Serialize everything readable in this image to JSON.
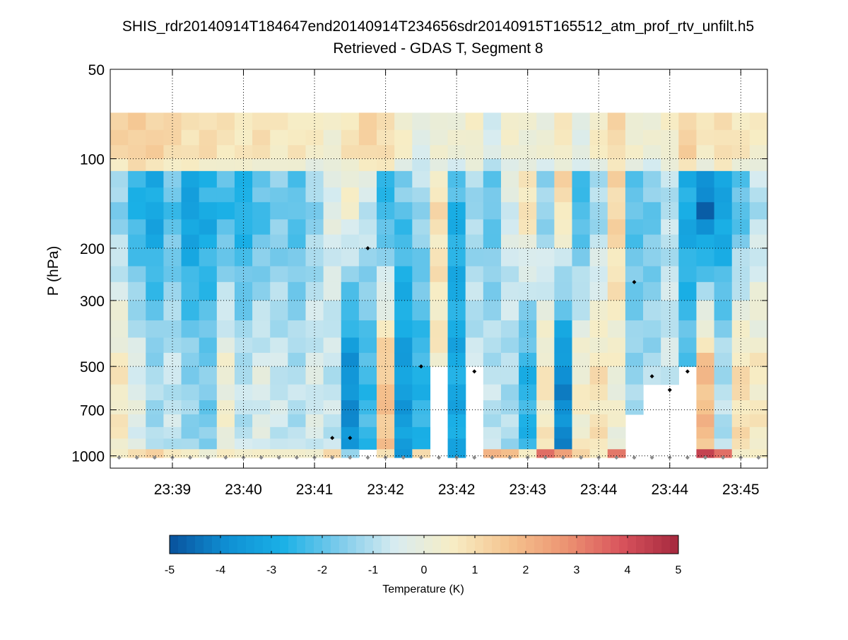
{
  "chart_data": {
    "type": "heatmap",
    "title": "SHIS_rdr20140914T184647end20140914T234656sdr20140915T165512_atm_prof_rtv_unfilt.h5",
    "subtitle": "Retrieved - GDAS T, Segment 8",
    "ylabel": "P (hPa)",
    "xlabel": "",
    "y_scale": "log",
    "ylim": [
      50,
      1100
    ],
    "y_ticks": [
      50,
      100,
      200,
      300,
      500,
      700,
      1000
    ],
    "x_tick_labels": [
      "23:39",
      "23:40",
      "23:41",
      "23:42",
      "23:42",
      "23:43",
      "23:44",
      "23:44",
      "23:45"
    ],
    "x_tick_columns": [
      3,
      7,
      11,
      15,
      19,
      23,
      27,
      31,
      35
    ],
    "n_columns": 37,
    "colorbar": {
      "label": "Temperature (K)",
      "range": [
        -5,
        5
      ],
      "ticks": [
        -5,
        -4,
        -3,
        -2,
        -1,
        0,
        1,
        2,
        3,
        4,
        5
      ],
      "colors": [
        "#08519c",
        "#0f8fd3",
        "#1ab0e6",
        "#7ccbeb",
        "#d8ecf0",
        "#f7edc5",
        "#f5c48f",
        "#ec9472",
        "#d8535c",
        "#a5283e"
      ]
    },
    "pressure_levels": [
      70,
      80,
      90,
      100,
      110,
      125,
      140,
      160,
      180,
      200,
      230,
      260,
      300,
      350,
      400,
      450,
      500,
      575,
      650,
      725,
      800,
      875,
      950,
      1013
    ],
    "surface_pressure_hpa": 1013,
    "data_extent_top_hpa": 70,
    "grid": true,
    "markers_note": "black diamonds mark cloud-top pressure; gray diamonds mark surface level",
    "column_profiles": [
      {
        "upper": 1.2,
        "mid": -1.6,
        "low": 0.6,
        "sfc": 0.5
      },
      {
        "upper": 1.4,
        "mid": -2.9,
        "low": -0.3,
        "sfc": 0.8
      },
      {
        "upper": 1.3,
        "mid": -3.4,
        "low": -1.2,
        "sfc": 1.5
      },
      {
        "upper": 1.1,
        "mid": -2.2,
        "low": -0.8,
        "sfc": 0.6
      },
      {
        "upper": 0.9,
        "mid": -3.6,
        "low": -1.4,
        "sfc": 0.4
      },
      {
        "upper": 1.0,
        "mid": -3.1,
        "low": -1.7,
        "sfc": 0.3
      },
      {
        "upper": 0.8,
        "mid": -2.6,
        "low": 0.2,
        "sfc": 0.5
      },
      {
        "upper": 0.7,
        "mid": -3.0,
        "low": -0.9,
        "sfc": 0.4
      },
      {
        "upper": 0.9,
        "mid": -2.4,
        "low": -0.4,
        "sfc": 0.6
      },
      {
        "upper": 0.6,
        "mid": -1.8,
        "low": -0.7,
        "sfc": 0.2
      },
      {
        "upper": 0.7,
        "mid": -2.3,
        "low": -1.0,
        "sfc": 0.5
      },
      {
        "upper": 0.5,
        "mid": -1.5,
        "low": -0.5,
        "sfc": 0.3
      },
      {
        "upper": 0.3,
        "mid": -0.3,
        "low": -0.8,
        "sfc": 1.0
      },
      {
        "upper": 0.8,
        "mid": 0.4,
        "low": -3.8,
        "sfc": -1.2
      },
      {
        "upper": 1.2,
        "mid": -0.6,
        "low": -2.4,
        "sfc": null
      },
      {
        "upper": 1.0,
        "mid": -2.8,
        "low": 1.6,
        "sfc": 0.8
      },
      {
        "upper": 0.4,
        "mid": -2.0,
        "low": -3.4,
        "sfc": -3.5
      },
      {
        "upper": -0.3,
        "mid": -1.2,
        "low": -2.6,
        "sfc": 0.9
      },
      {
        "upper": 0.2,
        "mid": 0.9,
        "low": null,
        "sfc": null
      },
      {
        "upper": 0.1,
        "mid": -2.7,
        "low": -3.0,
        "sfc": -3.2
      },
      {
        "upper": 0.4,
        "mid": -1.3,
        "low": null,
        "sfc": null
      },
      {
        "upper": -0.5,
        "mid": -2.1,
        "low": -0.9,
        "sfc": 2.2
      },
      {
        "upper": 0.3,
        "mid": -0.4,
        "low": -1.1,
        "sfc": 1.8
      },
      {
        "upper": 0.2,
        "mid": 1.0,
        "low": -2.6,
        "sfc": 0.4
      },
      {
        "upper": 0.1,
        "mid": -1.6,
        "low": 0.6,
        "sfc": 3.6
      },
      {
        "upper": 0.6,
        "mid": 1.2,
        "low": -3.9,
        "sfc": 2.4
      },
      {
        "upper": -0.2,
        "mid": -2.6,
        "low": 0.4,
        "sfc": 1.2
      },
      {
        "upper": 0.5,
        "mid": -1.4,
        "low": 0.8,
        "sfc": 0.7
      },
      {
        "upper": 1.1,
        "mid": 1.3,
        "low": 0.2,
        "sfc": 3.1
      },
      {
        "upper": 0.3,
        "mid": -2.2,
        "low": null,
        "sfc": null
      },
      {
        "upper": 0.1,
        "mid": -1.9,
        "low": null,
        "sfc": null
      },
      {
        "upper": 0.4,
        "mid": -1.0,
        "low": null,
        "sfc": null
      },
      {
        "upper": 1.3,
        "mid": -3.2,
        "low": null,
        "sfc": null
      },
      {
        "upper": 0.6,
        "mid": -4.8,
        "low": 1.8,
        "sfc": 4.3
      },
      {
        "upper": 1.0,
        "mid": -3.5,
        "low": -1.0,
        "sfc": 3.3
      },
      {
        "upper": 0.7,
        "mid": -2.4,
        "low": 0.9,
        "sfc": 0.6
      },
      {
        "upper": 0.5,
        "mid": -1.1,
        "low": 0.6,
        "sfc": 0.4
      }
    ],
    "cloud_mask_top_hpa": {
      "14": 960,
      "18": 500,
      "20": 520,
      "29": 700,
      "30": 540,
      "31": 600,
      "32": 520
    },
    "cloud_top_markers": [
      {
        "col": 12,
        "p": 870
      },
      {
        "col": 13,
        "p": 870
      },
      {
        "col": 14,
        "p": 200
      },
      {
        "col": 17,
        "p": 500
      },
      {
        "col": 20,
        "p": 520
      },
      {
        "col": 29,
        "p": 260
      },
      {
        "col": 30,
        "p": 540
      },
      {
        "col": 31,
        "p": 600
      },
      {
        "col": 32,
        "p": 520
      }
    ]
  }
}
